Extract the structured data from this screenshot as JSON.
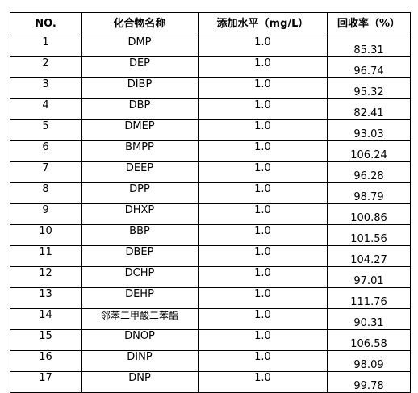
{
  "table": {
    "headers": {
      "no": "NO.",
      "compound": "化合物名称",
      "level": "添加水平（mg/L）",
      "recovery": "回收率（%）"
    },
    "rows": [
      {
        "no": "1",
        "compound": "DMP",
        "level": "1.0",
        "recovery": "85.31"
      },
      {
        "no": "2",
        "compound": "DEP",
        "level": "1.0",
        "recovery": "96.74"
      },
      {
        "no": "3",
        "compound": "DIBP",
        "level": "1.0",
        "recovery": "95.32"
      },
      {
        "no": "4",
        "compound": "DBP",
        "level": "1.0",
        "recovery": "82.41"
      },
      {
        "no": "5",
        "compound": "DMEP",
        "level": "1.0",
        "recovery": "93.03"
      },
      {
        "no": "6",
        "compound": "BMPP",
        "level": "1.0",
        "recovery": "106.24"
      },
      {
        "no": "7",
        "compound": "DEEP",
        "level": "1.0",
        "recovery": "96.28"
      },
      {
        "no": "8",
        "compound": "DPP",
        "level": "1.0",
        "recovery": "98.79"
      },
      {
        "no": "9",
        "compound": "DHXP",
        "level": "1.0",
        "recovery": "100.86"
      },
      {
        "no": "10",
        "compound": "BBP",
        "level": "1.0",
        "recovery": "101.56"
      },
      {
        "no": "11",
        "compound": "DBEP",
        "level": "1.0",
        "recovery": "104.27"
      },
      {
        "no": "12",
        "compound": "DCHP",
        "level": "1.0",
        "recovery": "97.01"
      },
      {
        "no": "13",
        "compound": "DEHP",
        "level": "1.0",
        "recovery": "111.76"
      },
      {
        "no": "14",
        "compound": "邻苯二甲酸二苯酯",
        "level": "1.0",
        "recovery": "90.31"
      },
      {
        "no": "15",
        "compound": "DNOP",
        "level": "1.0",
        "recovery": "106.58"
      },
      {
        "no": "16",
        "compound": "DINP",
        "level": "1.0",
        "recovery": "98.09"
      },
      {
        "no": "17",
        "compound": "DNP",
        "level": "1.0",
        "recovery": "99.78"
      }
    ]
  }
}
